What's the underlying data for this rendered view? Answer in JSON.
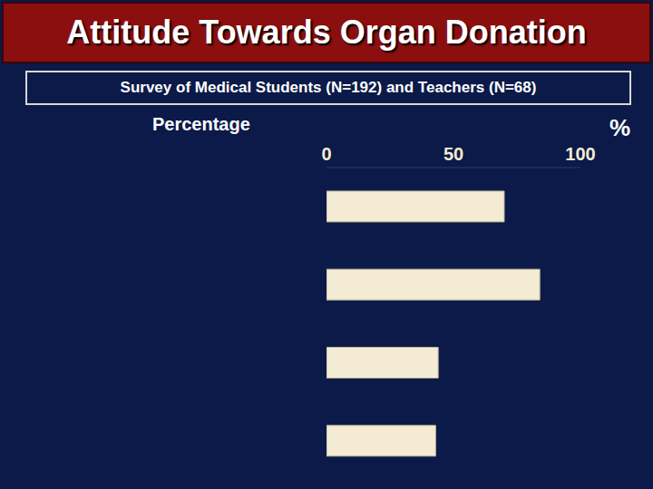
{
  "chart_data": {
    "type": "bar",
    "title": "Attitude Towards Organ Donation",
    "subtitle": "Survey of Medical Students (N=192) and Teachers (N=68)",
    "axis_label": "Percentage",
    "unit": "%",
    "orientation": "horizontal",
    "categories": [
      null,
      null,
      null,
      null
    ],
    "values": [
      70,
      84,
      44,
      43
    ],
    "color": "#f3ebd3",
    "xlim": [
      0,
      100
    ],
    "xticks": [
      0,
      50,
      100
    ],
    "grid": false
  }
}
